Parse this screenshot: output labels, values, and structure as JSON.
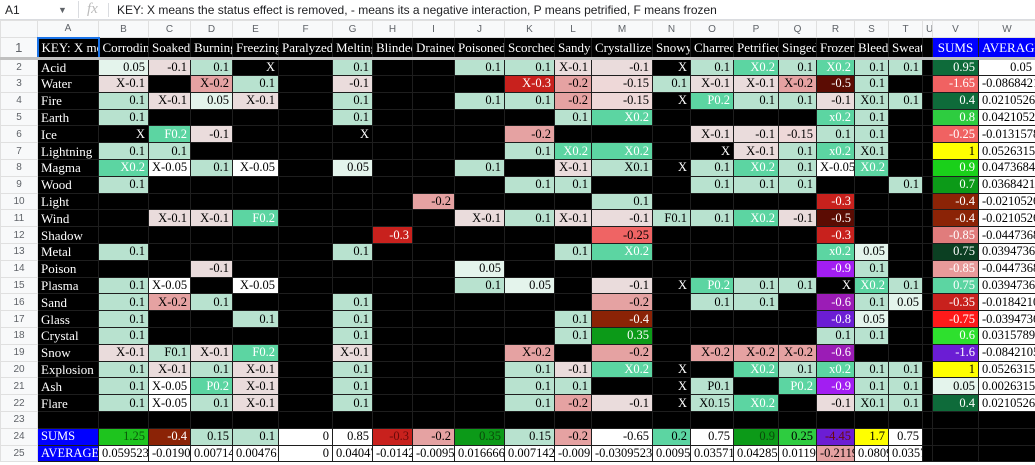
{
  "formula_bar": {
    "cell_ref": "A1",
    "fx_icon": "fx",
    "formula": "KEY: X means the status effect is removed, - means its a negative interaction, P means petrified, F means frozen"
  },
  "column_letters": [
    "A",
    "B",
    "C",
    "D",
    "E",
    "F",
    "G",
    "H",
    "I",
    "J",
    "K",
    "L",
    "M",
    "N",
    "O",
    "P",
    "Q",
    "R",
    "S",
    "T",
    "U",
    "V",
    "W"
  ],
  "header_row": {
    "key": "KEY: X means the status effect is removed, - means its a negative interaction, P means petrified, F means frozen",
    "effects": [
      "Corroding",
      "Soaked",
      "Burning",
      "Freezing",
      "Paralyzed",
      "Melting",
      "Blinded",
      "Drained",
      "Poisoned",
      "Scorched",
      "Sandy",
      "Crystallized",
      "Snowy",
      "Charred",
      "Petrified",
      "Singed",
      "Frozen",
      "Bleed",
      "Sweat"
    ],
    "sums": "SUMS",
    "average": "AVERAGE"
  },
  "rows": [
    {
      "num": "2",
      "label": "Acid",
      "cells": [
        "0.05",
        "-0.1",
        "0.1",
        "X",
        "",
        "0.1",
        "",
        "",
        "0.1",
        "0.1",
        "X-0.1",
        "-0.1",
        "X",
        "0.1",
        "X0.2",
        "0.1",
        "X0.2",
        "0.1",
        "0.1"
      ],
      "sum": "0.95",
      "sum_bg": "#0e6b3a",
      "sum_fg": "#ffffff",
      "avg": "0.05"
    },
    {
      "num": "3",
      "label": "Water",
      "cells": [
        "X-0.1",
        "",
        "X-0.2",
        "0.1",
        "",
        "-0.1",
        "",
        "",
        "",
        "X-0.3",
        "-0.2",
        "-0.15",
        "0.1",
        "X-0.1",
        "X-0.1",
        "X-0.2",
        "-0.5",
        "0.1",
        ""
      ],
      "sum": "-1.65",
      "sum_bg": "#f06262",
      "sum_fg": "#ffffff",
      "avg": "-0.0868421"
    },
    {
      "num": "4",
      "label": "Fire",
      "cells": [
        "0.1",
        "X-0.1",
        "0.05",
        "X-0.1",
        "",
        "0.1",
        "",
        "",
        "0.1",
        "0.1",
        "-0.2",
        "-0.15",
        "X",
        "P0.2",
        "0.1",
        "0.1",
        "-0.1",
        "X0.1",
        "0.1"
      ],
      "sum": "0.4",
      "sum_bg": "#0e6b3a",
      "sum_fg": "#ffffff",
      "avg": "0.02105263"
    },
    {
      "num": "5",
      "label": "Earth",
      "cells": [
        "0.1",
        "",
        "",
        "",
        "",
        "0.1",
        "",
        "",
        "",
        "",
        "0.1",
        "X0.2",
        "",
        "",
        "",
        "",
        "x0.2",
        "0.1",
        ""
      ],
      "sum": "0.8",
      "sum_bg": "#2ecc40",
      "sum_fg": "#ffffff",
      "avg": "0.04210526"
    },
    {
      "num": "6",
      "label": "Ice",
      "cells": [
        "X",
        "F0.2",
        "-0.1",
        "",
        "",
        "X",
        "",
        "",
        "",
        "-0.2",
        "",
        "",
        "",
        "X-0.1",
        "-0.1",
        "-0.15",
        "0.1",
        "0.1",
        ""
      ],
      "sum": "-0.25",
      "sum_bg": "#f06262",
      "sum_fg": "#ffffff",
      "avg": "-0.01315789"
    },
    {
      "num": "7",
      "label": "Lightning",
      "cells": [
        "0.1",
        "0.1",
        "",
        "",
        "",
        "",
        "",
        "",
        "",
        "0.1",
        "X0.2",
        "X0.2",
        "",
        "X",
        "X-0.1",
        "0.1",
        "x0.2",
        "X0.1",
        ""
      ],
      "sum": "1",
      "sum_bg": "#ffff00",
      "sum_fg": "#000000",
      "avg": "0.05263157"
    },
    {
      "num": "8",
      "label": "Magma",
      "cells": [
        "X0.2",
        "X-0.05",
        "0.1",
        "X-0.05",
        "",
        "0.05",
        "",
        "",
        "0.1",
        "",
        "X-0.1",
        "X0.1",
        "X",
        "0.1",
        "X0.2",
        "0.1",
        "X-0.05",
        "X0.2",
        ""
      ],
      "sum": "0.9",
      "sum_bg": "#1ad01a",
      "sum_fg": "#ffffff",
      "avg": "0.04736842"
    },
    {
      "num": "9",
      "label": "Wood",
      "cells": [
        "0.1",
        "",
        "",
        "",
        "",
        "",
        "",
        "",
        "",
        "0.1",
        "0.1",
        "",
        "",
        "0.1",
        "0.1",
        "0.1",
        "",
        "",
        "0.1"
      ],
      "sum": "0.7",
      "sum_bg": "#0c9a18",
      "sum_fg": "#ffffff",
      "avg": "0.03684210"
    },
    {
      "num": "10",
      "label": "Light",
      "cells": [
        "",
        "",
        "",
        "",
        "",
        "",
        "",
        "-0.2",
        "",
        "",
        "",
        "0.1",
        "",
        "",
        "",
        "",
        "-0.3",
        "",
        ""
      ],
      "sum": "-0.4",
      "sum_bg": "#8b2306",
      "sum_fg": "#ffffff",
      "avg": "-0.0210526"
    },
    {
      "num": "11",
      "label": "Wind",
      "cells": [
        "",
        "X-0.1",
        "X-0.1",
        "F0.2",
        "",
        "",
        "",
        "",
        "X-0.1",
        "0.1",
        "X-0.1",
        "-0.1",
        "F0.1",
        "0.1",
        "X0.2",
        "-0.1",
        "-0.5",
        "",
        ""
      ],
      "sum": "-0.4",
      "sum_bg": "#8b2306",
      "sum_fg": "#ffffff",
      "avg": "-0.0210526"
    },
    {
      "num": "12",
      "label": "Shadow",
      "cells": [
        "",
        "",
        "",
        "",
        "",
        "",
        "-0.3",
        "",
        "",
        "",
        "",
        "-0.25",
        "",
        "",
        "",
        "",
        "-0.3",
        "",
        ""
      ],
      "sum": "-0.85",
      "sum_bg": "#e07c7c",
      "sum_fg": "#ffffff",
      "avg": "-0.0447368"
    },
    {
      "num": "13",
      "label": "Metal",
      "cells": [
        "0.1",
        "",
        "",
        "",
        "",
        "0.1",
        "",
        "",
        "",
        "",
        "0.1",
        "X0.2",
        "",
        "",
        "",
        "",
        "x0.2",
        "0.05",
        ""
      ],
      "sum": "0.75",
      "sum_bg": "#0b3f22",
      "sum_fg": "#ffffff",
      "avg": "0.03947368"
    },
    {
      "num": "14",
      "label": "Poison",
      "cells": [
        "",
        "",
        "-0.1",
        "",
        "",
        "",
        "",
        "",
        "0.05",
        "",
        "",
        "",
        "",
        "",
        "",
        "",
        "-0.9",
        "0.1",
        ""
      ],
      "sum": "-0.85",
      "sum_bg": "#e89a9a",
      "sum_fg": "#ffffff",
      "avg": "-0.0447368"
    },
    {
      "num": "15",
      "label": "Plasma",
      "cells": [
        "0.1",
        "X-0.05",
        "",
        "X-0.05",
        "",
        "",
        "",
        "",
        "0.1",
        "0.05",
        "",
        "-0.1",
        "X",
        "P0.2",
        "0.1",
        "0.1",
        "X",
        "X0.2",
        "0.1"
      ],
      "sum": "0.75",
      "sum_bg": "#5cd5a2",
      "sum_fg": "#ffffff",
      "avg": "0.03947368"
    },
    {
      "num": "16",
      "label": "Sand",
      "cells": [
        "0.1",
        "X-0.2",
        "0.1",
        "",
        "",
        "0.1",
        "",
        "",
        "",
        "",
        "",
        "-0.2",
        "",
        "0.1",
        "0.1",
        "",
        "-0.6",
        "0.1",
        "0.05"
      ],
      "sum": "-0.35",
      "sum_bg": "#c8211d",
      "sum_fg": "#ffffff",
      "avg": "-0.0184210"
    },
    {
      "num": "17",
      "label": "Glass",
      "cells": [
        "0.1",
        "",
        "",
        "0.1",
        "",
        "0.1",
        "",
        "",
        "",
        "",
        "0.1",
        "-0.4",
        "",
        "",
        "",
        "",
        "-0.8",
        "0.05",
        ""
      ],
      "sum": "-0.75",
      "sum_bg": "#ff1a1a",
      "sum_fg": "#ffffff",
      "avg": "-0.0394736"
    },
    {
      "num": "18",
      "label": "Crystal",
      "cells": [
        "0.1",
        "",
        "",
        "",
        "",
        "0.1",
        "",
        "",
        "",
        "",
        "0.1",
        "0.35",
        "",
        "",
        "",
        "",
        "0.1",
        "0.1",
        ""
      ],
      "sum": "0.6",
      "sum_bg": "#2ee02e",
      "sum_fg": "#ffffff",
      "avg": "0.03157894"
    },
    {
      "num": "19",
      "label": "Snow",
      "cells": [
        "X-0.1",
        "F0.1",
        "X-0.1",
        "F0.2",
        "",
        "X-0.1",
        "",
        "",
        "",
        "X-0.2",
        "",
        "-0.2",
        "",
        "X-0.2",
        "X-0.2",
        "X-0.2",
        "-0.6",
        "",
        ""
      ],
      "sum": "-1.6",
      "sum_bg": "#6b1dd4",
      "sum_fg": "#ffffff",
      "avg": "-0.0842105"
    },
    {
      "num": "20",
      "label": "Explosion",
      "cells": [
        "0.1",
        "X-0.1",
        "0.1",
        "X-0.1",
        "",
        "0.1",
        "",
        "",
        "",
        "0.1",
        "-0.1",
        "X0.2",
        "X",
        "",
        "X0.2",
        "0.1",
        "x0.2",
        "0.1",
        "0.1"
      ],
      "sum": "1",
      "sum_bg": "#ffff00",
      "sum_fg": "#000000",
      "avg": "0.05263157"
    },
    {
      "num": "21",
      "label": "Ash",
      "cells": [
        "0.1",
        "X-0.05",
        "P0.2",
        "X-0.1",
        "",
        "0.1",
        "",
        "",
        "",
        "0.1",
        "0.1",
        "",
        "X",
        "P0.1",
        "",
        "P0.2",
        "-0.9",
        "0.1",
        "0.1"
      ],
      "sum": "0.05",
      "sum_bg": "#e4f4ec",
      "sum_fg": "#000000",
      "avg": "0.00263157"
    },
    {
      "num": "22",
      "label": "Flare",
      "cells": [
        "0.1",
        "X-0.05",
        "0.1",
        "X-0.1",
        "",
        "0.1",
        "",
        "",
        "",
        "0.1",
        "-0.2",
        "-0.1",
        "X",
        "X0.15",
        "X0.2",
        "",
        "-0.1",
        "X0.1",
        "0.1"
      ],
      "sum": "0.4",
      "sum_bg": "#0e6b3a",
      "sum_fg": "#ffffff",
      "avg": "0.02105263"
    }
  ],
  "blank_row_num": "23",
  "totals": {
    "sums_num": "24",
    "sums_label": "SUMS",
    "sums": [
      "1.25",
      "-0.4",
      "0.15",
      "0.1",
      "0",
      "0.85",
      "-0.3",
      "-0.2",
      "0.35",
      "0.15",
      "-0.2",
      "-0.65",
      "0.2",
      "0.75",
      "0.9",
      "0.25",
      "-4.45",
      "1.7",
      "0.75"
    ],
    "sums_bg": [
      "#1ec41e",
      "#8b2306",
      "#b8e2cf",
      "#b8e2cf",
      "#ffffff",
      "#ffffff",
      "#c8211d",
      "#e5a2a2",
      "#0c9a18",
      "#b8e2cf",
      "#e5a2a2",
      "#ffffff",
      "#5cd5a2",
      "#ffffff",
      "#0c9a18",
      "#2ecc40",
      "#6b1dd4",
      "#ffff00",
      "#ffffff"
    ],
    "sums_fg": [
      "#0a5a0a",
      "#ffffff",
      "#000000",
      "#000000",
      "#000000",
      "#000000",
      "#6a0a0a",
      "#000000",
      "#0a4a0a",
      "#000000",
      "#000000",
      "#000000",
      "#000000",
      "#000000",
      "#0a4a0a",
      "#000000",
      "#6a0a0a",
      "#000000",
      "#000000"
    ],
    "average_num": "25",
    "average_label": "AVERAGE",
    "averages": [
      "0.0595238",
      "-0.01904",
      "0.007142",
      "0.0047619",
      "0",
      "0.04047",
      "-0.01428",
      "-0.00952",
      "0.0166666",
      "0.0071428",
      "-0.0095",
      "-0.03095238",
      "0.00952",
      "0.035714",
      "0.042857",
      "0.01190",
      "-0.21190",
      "0.0809",
      "0.03571"
    ],
    "averages_bg": [
      "#fff",
      "#fff",
      "#fff",
      "#fff",
      "#fff",
      "#fff",
      "#fff",
      "#fff",
      "#fff",
      "#fff",
      "#fff",
      "#fff",
      "#fff",
      "#fff",
      "#fff",
      "#fff",
      "#e5a2a2",
      "#fff",
      "#fff"
    ]
  }
}
